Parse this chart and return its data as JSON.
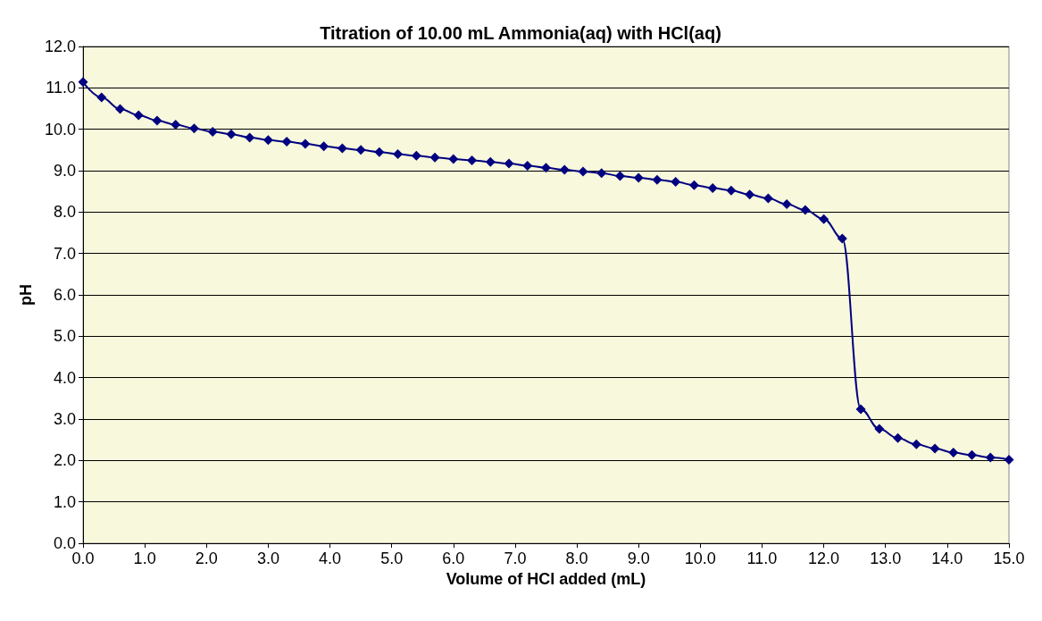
{
  "chart_data": {
    "type": "line",
    "title": "Titration of 10.00 mL Ammonia(aq) with HCl(aq)",
    "xlabel": "Volume of HCl added (mL)",
    "ylabel": "pH",
    "x": [
      0,
      0.3,
      0.6,
      0.9,
      1.2,
      1.5,
      1.8,
      2.1,
      2.4,
      2.7,
      3.0,
      3.3,
      3.6,
      3.9,
      4.2,
      4.5,
      4.8,
      5.1,
      5.4,
      5.7,
      6.0,
      6.3,
      6.6,
      6.9,
      7.2,
      7.5,
      7.8,
      8.1,
      8.4,
      8.7,
      9.0,
      9.3,
      9.6,
      9.9,
      10.2,
      10.5,
      10.8,
      11.1,
      11.4,
      11.7,
      12.0,
      12.3,
      12.6,
      12.9,
      13.2,
      13.5,
      13.8,
      14.1,
      14.4,
      14.7,
      15.0
    ],
    "series": [
      {
        "color": "#000080",
        "values": [
          11.14,
          10.77,
          10.49,
          10.34,
          10.21,
          10.11,
          10.02,
          9.94,
          9.88,
          9.8,
          9.74,
          9.7,
          9.65,
          9.59,
          9.54,
          9.5,
          9.45,
          9.4,
          9.36,
          9.32,
          9.28,
          9.25,
          9.21,
          9.17,
          9.12,
          9.07,
          9.02,
          8.98,
          8.94,
          8.87,
          8.83,
          8.78,
          8.73,
          8.65,
          8.58,
          8.52,
          8.42,
          8.33,
          8.19,
          8.05,
          7.83,
          7.36,
          3.24,
          2.76,
          2.54,
          2.39,
          2.29,
          2.19,
          2.13,
          2.07,
          2.02
        ]
      }
    ],
    "xlim": [
      0,
      15
    ],
    "ylim": [
      0,
      12
    ],
    "xticks": [
      {
        "value": 0,
        "label": "0.0"
      },
      {
        "value": 1,
        "label": "1.0"
      },
      {
        "value": 2,
        "label": "2.0"
      },
      {
        "value": 3,
        "label": "3.0"
      },
      {
        "value": 4,
        "label": "4.0"
      },
      {
        "value": 5,
        "label": "5.0"
      },
      {
        "value": 6,
        "label": "6.0"
      },
      {
        "value": 7,
        "label": "7.0"
      },
      {
        "value": 8,
        "label": "8.0"
      },
      {
        "value": 9,
        "label": "9.0"
      },
      {
        "value": 10,
        "label": "10.0"
      },
      {
        "value": 11,
        "label": "11.0"
      },
      {
        "value": 12,
        "label": "12.0"
      },
      {
        "value": 13,
        "label": "13.0"
      },
      {
        "value": 14,
        "label": "14.0"
      },
      {
        "value": 15,
        "label": "15.0"
      }
    ],
    "yticks": [
      {
        "value": 0,
        "label": "0.0"
      },
      {
        "value": 1,
        "label": "1.0"
      },
      {
        "value": 2,
        "label": "2.0"
      },
      {
        "value": 3,
        "label": "3.0"
      },
      {
        "value": 4,
        "label": "4.0"
      },
      {
        "value": 5,
        "label": "5.0"
      },
      {
        "value": 6,
        "label": "6.0"
      },
      {
        "value": 7,
        "label": "7.0"
      },
      {
        "value": 8,
        "label": "8.0"
      },
      {
        "value": 9,
        "label": "9.0"
      },
      {
        "value": 10,
        "label": "10.0"
      },
      {
        "value": 11,
        "label": "11.0"
      },
      {
        "value": 12,
        "label": "12.0"
      }
    ],
    "grid": "y",
    "marker": "diamond",
    "line_style": "solid"
  }
}
